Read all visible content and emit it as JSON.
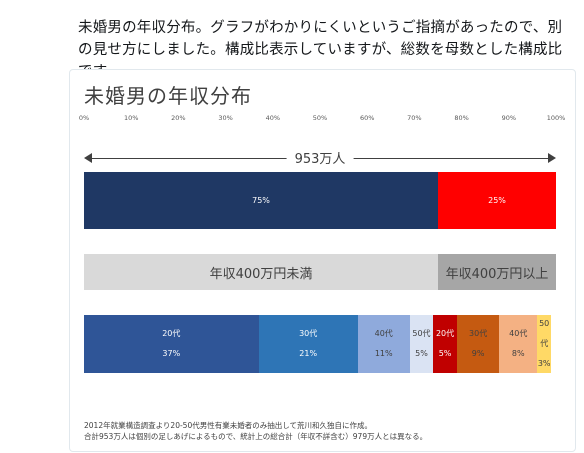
{
  "tweet": {
    "text": "未婚男の年収分布。グラフがわかりにくいというご指摘があったので、別の見せ方にしました。構成比表示していますが、総数を母数とした構成比です。"
  },
  "chart": {
    "title": "未婚男の年収分布",
    "total_label": "953万人",
    "note_line1": "2012年就業構造調査より20-50代男性有業未婚者のみ抽出して荒川和久独自に作成。",
    "note_line2": "合計953万人は個別の足しあげによるもので、統計上の総合計（年収不詳含む）979万人とは異なる。"
  },
  "chart_data": {
    "type": "bar",
    "x_ticks": [
      "0%",
      "10%",
      "20%",
      "30%",
      "40%",
      "50%",
      "60%",
      "70%",
      "80%",
      "90%",
      "100%"
    ],
    "xlim": [
      0,
      100
    ],
    "bar1": [
      {
        "label": "75%",
        "value": 75,
        "color": "#1f3864",
        "text_color": "#ffffff"
      },
      {
        "label": "25%",
        "value": 25,
        "color": "#ff0000",
        "text_color": "#ffffff"
      }
    ],
    "bar2": [
      {
        "label": "年収400万円未満",
        "value": 75,
        "color": "#d9d9d9"
      },
      {
        "label": "年収400万円以上",
        "value": 25,
        "color": "#a6a6a6"
      }
    ],
    "bar3": [
      {
        "age": "20代",
        "pct": "37%",
        "value": 37,
        "color": "#2f5597",
        "text_color": "#ffffff"
      },
      {
        "age": "30代",
        "pct": "21%",
        "value": 21,
        "color": "#2e75b6",
        "text_color": "#ffffff"
      },
      {
        "age": "40代",
        "pct": "11%",
        "value": 11,
        "color": "#8faadc",
        "text_color": "#404040"
      },
      {
        "age": "50代",
        "pct": "5%",
        "value": 5,
        "color": "#dae3f3",
        "text_color": "#404040"
      },
      {
        "age": "20代",
        "pct": "5%",
        "value": 5,
        "color": "#c00000",
        "text_color": "#ffffff"
      },
      {
        "age": "30代",
        "pct": "9%",
        "value": 9,
        "color": "#c55a11",
        "text_color": "#404040"
      },
      {
        "age": "40代",
        "pct": "8%",
        "value": 8,
        "color": "#f4b183",
        "text_color": "#404040"
      },
      {
        "age": "50代",
        "pct": "3%",
        "value": 3,
        "color": "#ffd966",
        "text_color": "#404040"
      }
    ]
  }
}
